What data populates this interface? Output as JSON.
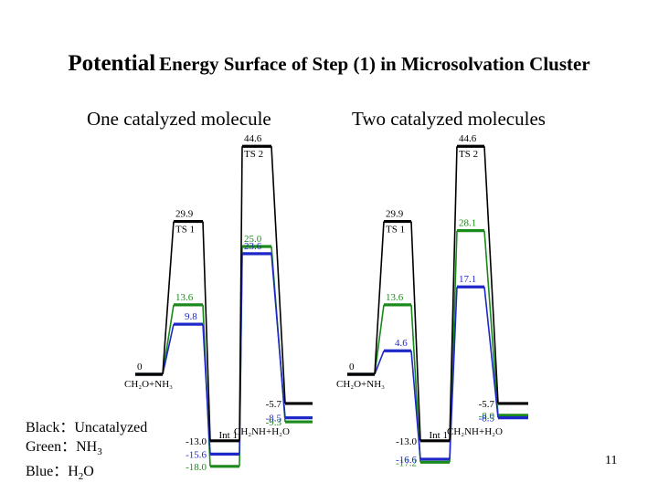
{
  "title": {
    "big": "Potential",
    "rest": "Energy Surface of Step (1) in Microsolvation Cluster"
  },
  "panels": [
    {
      "subtitle": "One catalyzed molecule"
    },
    {
      "subtitle": "Two catalyzed molecules"
    }
  ],
  "legend": {
    "black": "Black：Uncatalyzed",
    "green_prefix": "Green：NH",
    "green_sub": "3",
    "blue_prefix": "Blue：H",
    "blue_sub": "2",
    "blue_suffix": "O"
  },
  "page_number": "11",
  "colors": {
    "black": "#000000",
    "green": "#1a8a1a",
    "blue": "#1e28c8"
  },
  "chart_data": [
    {
      "type": "line",
      "title": "One catalyzed molecule",
      "stages": [
        "CH2O+NH3",
        "TS 1",
        "Int 1",
        "TS 2",
        "CH2NH+H2O"
      ],
      "stage_labels": [
        "CH₂O+NH₃",
        "TS 1",
        "Int 1",
        "TS 2",
        "CH₂NH+H₂O"
      ],
      "series": [
        {
          "color": "black",
          "values": [
            0,
            29.9,
            -13.0,
            44.6,
            -5.7
          ],
          "labels": [
            "0",
            "29.9",
            "-13.0",
            "44.6",
            "-5.7"
          ]
        },
        {
          "color": "green",
          "values": [
            0,
            13.6,
            -18.0,
            25.0,
            -9.3
          ],
          "labels": [
            "",
            "13.6",
            "-18.0",
            "25.0",
            "-9.3"
          ]
        },
        {
          "color": "blue",
          "values": [
            0,
            9.8,
            -15.6,
            23.6,
            -8.5
          ],
          "labels": [
            "",
            "9.8",
            "-15.6",
            "23.6",
            "-8.5"
          ]
        }
      ]
    },
    {
      "type": "line",
      "title": "Two catalyzed molecules",
      "stages": [
        "CH2O+NH3",
        "TS 1",
        "Int 1",
        "TS 2",
        "CH2NH+H2O"
      ],
      "stage_labels": [
        "CH₂O+NH₃",
        "TS 1",
        "Int 1",
        "TS 2",
        "CH₂NH+H₂O"
      ],
      "series": [
        {
          "color": "black",
          "values": [
            0,
            29.9,
            -13.0,
            44.6,
            -5.7
          ],
          "labels": [
            "0",
            "29.9",
            "-13.0",
            "44.6",
            "-5.7"
          ]
        },
        {
          "color": "green",
          "values": [
            0,
            13.6,
            -17.2,
            28.1,
            -8.0
          ],
          "labels": [
            "",
            "13.6",
            "-17.2",
            "28.1",
            "-8.0"
          ]
        },
        {
          "color": "blue",
          "values": [
            0,
            4.6,
            -16.6,
            17.1,
            -8.5
          ],
          "labels": [
            "",
            "4.6",
            "-16.6",
            "17.1",
            "-8.5"
          ]
        }
      ]
    }
  ]
}
